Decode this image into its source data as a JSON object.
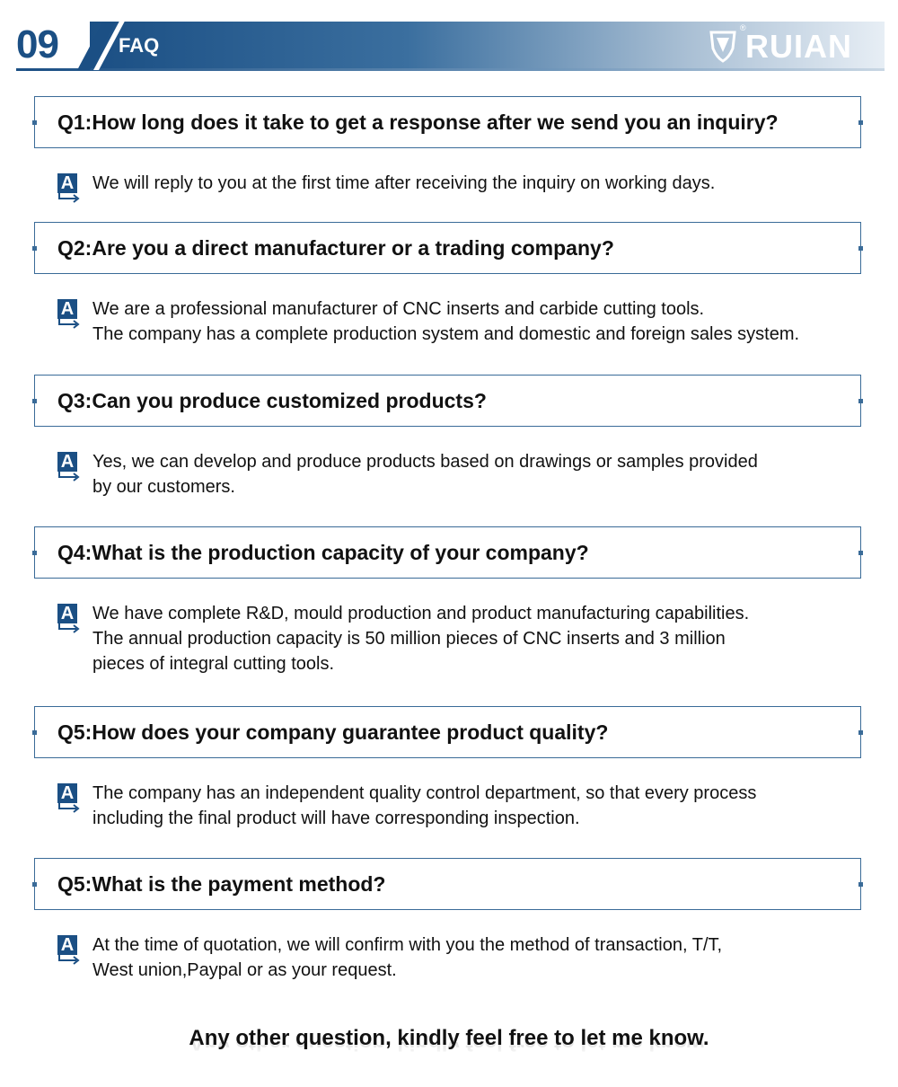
{
  "header": {
    "section_number": "09",
    "section_title": "FAQ",
    "logo_text": "RUIAN",
    "logo_mark": "®",
    "colors": {
      "primary": "#1b4f84",
      "border": "#3a6b98"
    }
  },
  "faq": [
    {
      "question": "Q1:How long does it take to get a response after we send you an inquiry?",
      "answer": [
        "We will reply to you at the first time after receiving the inquiry on working days."
      ]
    },
    {
      "question": "Q2:Are you a direct manufacturer or a trading company?",
      "answer": [
        "We are a professional manufacturer of CNC inserts and carbide cutting tools.",
        "The company has a complete production system and domestic and foreign sales system."
      ]
    },
    {
      "question": "Q3:Can you produce customized products?",
      "answer": [
        "Yes, we can develop and produce products based on drawings or samples provided",
        "by our customers."
      ]
    },
    {
      "question": "Q4:What is the production capacity of your company?",
      "answer": [
        "We have complete R&D, mould production and product manufacturing capabilities.",
        "The annual production capacity is 50 million pieces of CNC inserts and 3 million",
        "pieces of integral cutting tools."
      ]
    },
    {
      "question": "Q5:How does your company guarantee product quality?",
      "answer": [
        "The company has an independent quality control department, so that every process",
        "including the final product will have corresponding inspection."
      ]
    },
    {
      "question": "Q5:What is the payment method?",
      "answer": [
        "At the time of quotation, we will confirm with you the method of transaction, T/T,",
        "West union,Paypal or as your request."
      ]
    }
  ],
  "answer_badge": "A",
  "footer": {
    "text": "Any other question, kindly feel free to let me know."
  }
}
